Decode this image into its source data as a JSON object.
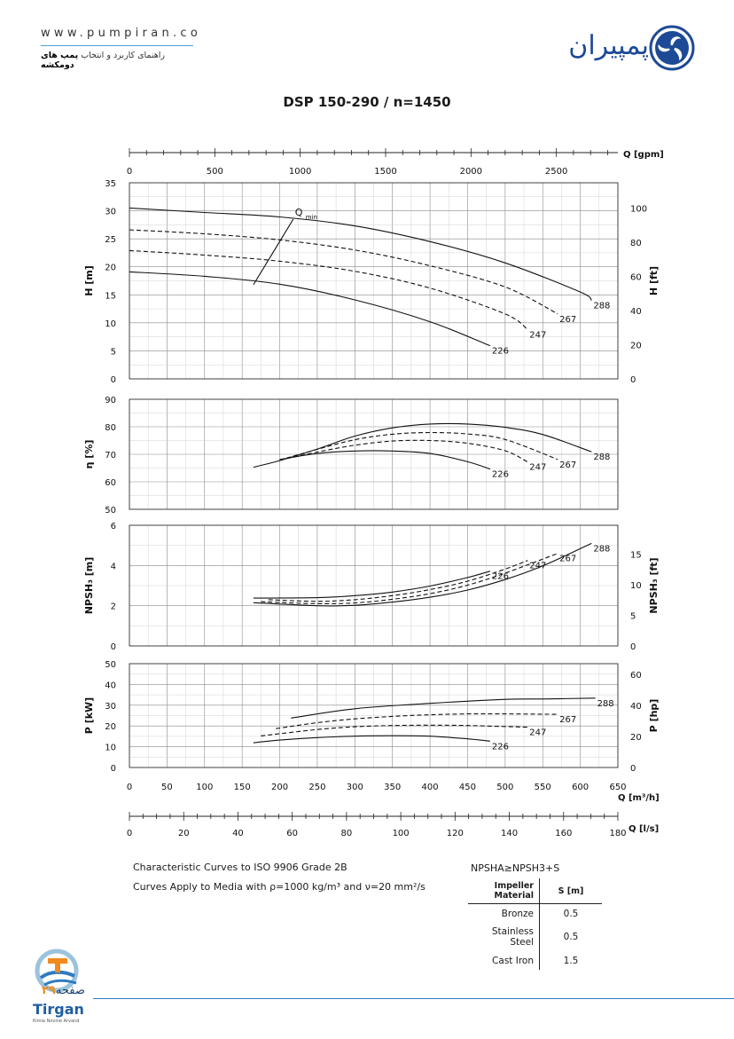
{
  "header": {
    "url": "www.pumpiran.co",
    "subtitle_prefix": "راهنمای کاربرد و انتخاب",
    "subtitle_bold": "پمپ های دومکشه",
    "logo_text": "پمپیران"
  },
  "footer": {
    "page_label": "صفحه",
    "page_number": "۲۹",
    "brand": "Tirgan",
    "brand_sub": "Kimia Novine Arvand"
  },
  "chart_data": {
    "type": "line",
    "title": "DSP 150-290 / n=1450",
    "x_axes": {
      "gpm": {
        "label": "Q [gpm]",
        "ticks": [
          0,
          500,
          1000,
          1500,
          2000,
          2500
        ],
        "max": 2860
      },
      "m3h": {
        "label": "Q [m³/h]",
        "ticks": [
          0,
          50,
          100,
          150,
          200,
          250,
          300,
          350,
          400,
          450,
          500,
          550,
          600,
          650
        ],
        "range": [
          0,
          650
        ]
      },
      "ls": {
        "label": "Q [l/s]",
        "ticks": [
          0,
          20,
          40,
          60,
          80,
          100,
          120,
          140,
          160,
          180
        ],
        "max": 180
      }
    },
    "panels": [
      {
        "id": "head",
        "ylabel": "H [m]",
        "ylim": [
          0,
          35
        ],
        "yticks": [
          0,
          5,
          10,
          15,
          20,
          25,
          30,
          35
        ],
        "ylabel_right": "H [ft]",
        "ylim_right": [
          0,
          114.8
        ],
        "yticks_right": [
          0,
          20,
          40,
          60,
          80,
          100
        ],
        "annotation": {
          "text": "Q",
          "sub": "min"
        },
        "series": [
          {
            "name": "288",
            "dashed": false,
            "x": [
              0,
              100,
              200,
              300,
              400,
              500,
              600,
              615
            ],
            "y": [
              30.5,
              29.7,
              28.9,
              27.3,
              24.5,
              20.7,
              15.5,
              14.0
            ]
          },
          {
            "name": "267",
            "dashed": true,
            "x": [
              0,
              100,
              200,
              300,
              400,
              500,
              570
            ],
            "y": [
              26.6,
              25.9,
              24.8,
              23.0,
              20.2,
              16.4,
              11.6
            ]
          },
          {
            "name": "247",
            "dashed": true,
            "x": [
              0,
              100,
              200,
              300,
              400,
              500,
              530
            ],
            "y": [
              22.9,
              22.1,
              21.0,
              19.2,
              16.2,
              11.6,
              8.8
            ]
          },
          {
            "name": "226",
            "dashed": false,
            "x": [
              0,
              100,
              200,
              300,
              400,
              480
            ],
            "y": [
              19.1,
              18.3,
              16.9,
              14.1,
              10.2,
              5.9
            ]
          },
          {
            "name": "Qmin",
            "dashed": false,
            "x": [
              165,
              218
            ],
            "y": [
              16.8,
              28.5
            ]
          }
        ]
      },
      {
        "id": "efficiency",
        "ylabel": "η [%]",
        "ylim": [
          50,
          90
        ],
        "yticks": [
          50,
          60,
          70,
          80,
          90
        ],
        "series": [
          {
            "name": "288",
            "dashed": false,
            "x": [
              165,
              200,
              250,
              300,
              350,
              400,
              450,
              500,
              550,
              615
            ],
            "y": [
              65.3,
              67.7,
              71.9,
              76.6,
              79.6,
              81.0,
              81.0,
              79.8,
              77.2,
              70.9
            ]
          },
          {
            "name": "267",
            "dashed": true,
            "x": [
              200,
              250,
              300,
              350,
              400,
              450,
              500,
              570
            ],
            "y": [
              67.9,
              71.8,
              75.3,
              77.3,
              77.9,
              77.4,
              75.4,
              68.1
            ]
          },
          {
            "name": "247",
            "dashed": true,
            "x": [
              200,
              250,
              300,
              350,
              400,
              450,
              500,
              530
            ],
            "y": [
              67.9,
              70.8,
              73.3,
              74.8,
              75.0,
              74.0,
              71.3,
              67.2
            ]
          },
          {
            "name": "226",
            "dashed": false,
            "x": [
              200,
              250,
              300,
              350,
              400,
              450,
              480
            ],
            "y": [
              68.1,
              70.3,
              71.2,
              71.2,
              70.3,
              67.3,
              64.6
            ]
          }
        ]
      },
      {
        "id": "npsh",
        "ylabel": "NPSH₃ [m]",
        "ylim": [
          0,
          6
        ],
        "yticks": [
          0,
          2,
          4,
          6
        ],
        "ylabel_right": "NPSH₃ [ft]",
        "ylim_right": [
          0,
          19.7
        ],
        "yticks_right": [
          0,
          5,
          10,
          15
        ],
        "series": [
          {
            "name": "288",
            "dashed": false,
            "x": [
              165,
              250,
              300,
              350,
              400,
              450,
              500,
              550,
              615
            ],
            "y": [
              2.15,
              2.0,
              2.02,
              2.18,
              2.42,
              2.78,
              3.3,
              3.98,
              5.1
            ]
          },
          {
            "name": "267",
            "dashed": true,
            "x": [
              175,
              250,
              300,
              350,
              400,
              450,
              500,
              570
            ],
            "y": [
              2.2,
              2.1,
              2.14,
              2.32,
              2.6,
              3.02,
              3.62,
              4.6
            ]
          },
          {
            "name": "247",
            "dashed": true,
            "x": [
              185,
              250,
              300,
              350,
              400,
              450,
              500,
              530
            ],
            "y": [
              2.3,
              2.22,
              2.3,
              2.5,
              2.8,
              3.22,
              3.82,
              4.25
            ]
          },
          {
            "name": "226",
            "dashed": false,
            "x": [
              165,
              250,
              300,
              350,
              400,
              450,
              480
            ],
            "y": [
              2.38,
              2.4,
              2.5,
              2.68,
              2.98,
              3.4,
              3.72
            ]
          }
        ]
      },
      {
        "id": "power",
        "ylabel": "P [kW]",
        "ylim": [
          0,
          50
        ],
        "yticks": [
          0,
          10,
          20,
          30,
          40,
          50
        ],
        "ylabel_right": "P [hp]",
        "ylim_right": [
          0,
          67
        ],
        "yticks_right": [
          0,
          20,
          40,
          60
        ],
        "series": [
          {
            "name": "288",
            "dashed": false,
            "x": [
              215,
              300,
              400,
              500,
              550,
              620
            ],
            "y": [
              23.8,
              28.3,
              30.9,
              32.8,
              33.0,
              33.4
            ]
          },
          {
            "name": "267",
            "dashed": true,
            "x": [
              195,
              250,
              300,
              350,
              400,
              450,
              500,
              570
            ],
            "y": [
              18.7,
              21.6,
              23.4,
              24.6,
              25.4,
              25.8,
              25.8,
              25.6
            ]
          },
          {
            "name": "247",
            "dashed": true,
            "x": [
              175,
              250,
              300,
              350,
              400,
              450,
              530
            ],
            "y": [
              15.2,
              18.3,
              19.6,
              20.2,
              20.4,
              20.2,
              19.4
            ]
          },
          {
            "name": "226",
            "dashed": false,
            "x": [
              165,
              200,
              250,
              300,
              350,
              400,
              450,
              480
            ],
            "y": [
              11.9,
              13.2,
              14.4,
              15.1,
              15.3,
              15.1,
              13.8,
              12.7
            ]
          }
        ]
      }
    ],
    "notes": [
      "Characteristic Curves to ISO 9906 Grade 2B",
      "Curves Apply to Media with ρ=1000 kg/m³ and ν=20 mm²/s"
    ],
    "npsh_relation": "NPSHA≥NPSH3+S",
    "impeller_table": {
      "headers": [
        "Impeller Material",
        "S [m]"
      ],
      "rows": [
        [
          "Bronze",
          "0.5"
        ],
        [
          "Stainless Steel",
          "0.5"
        ],
        [
          "Cast Iron",
          "1.5"
        ]
      ]
    }
  }
}
